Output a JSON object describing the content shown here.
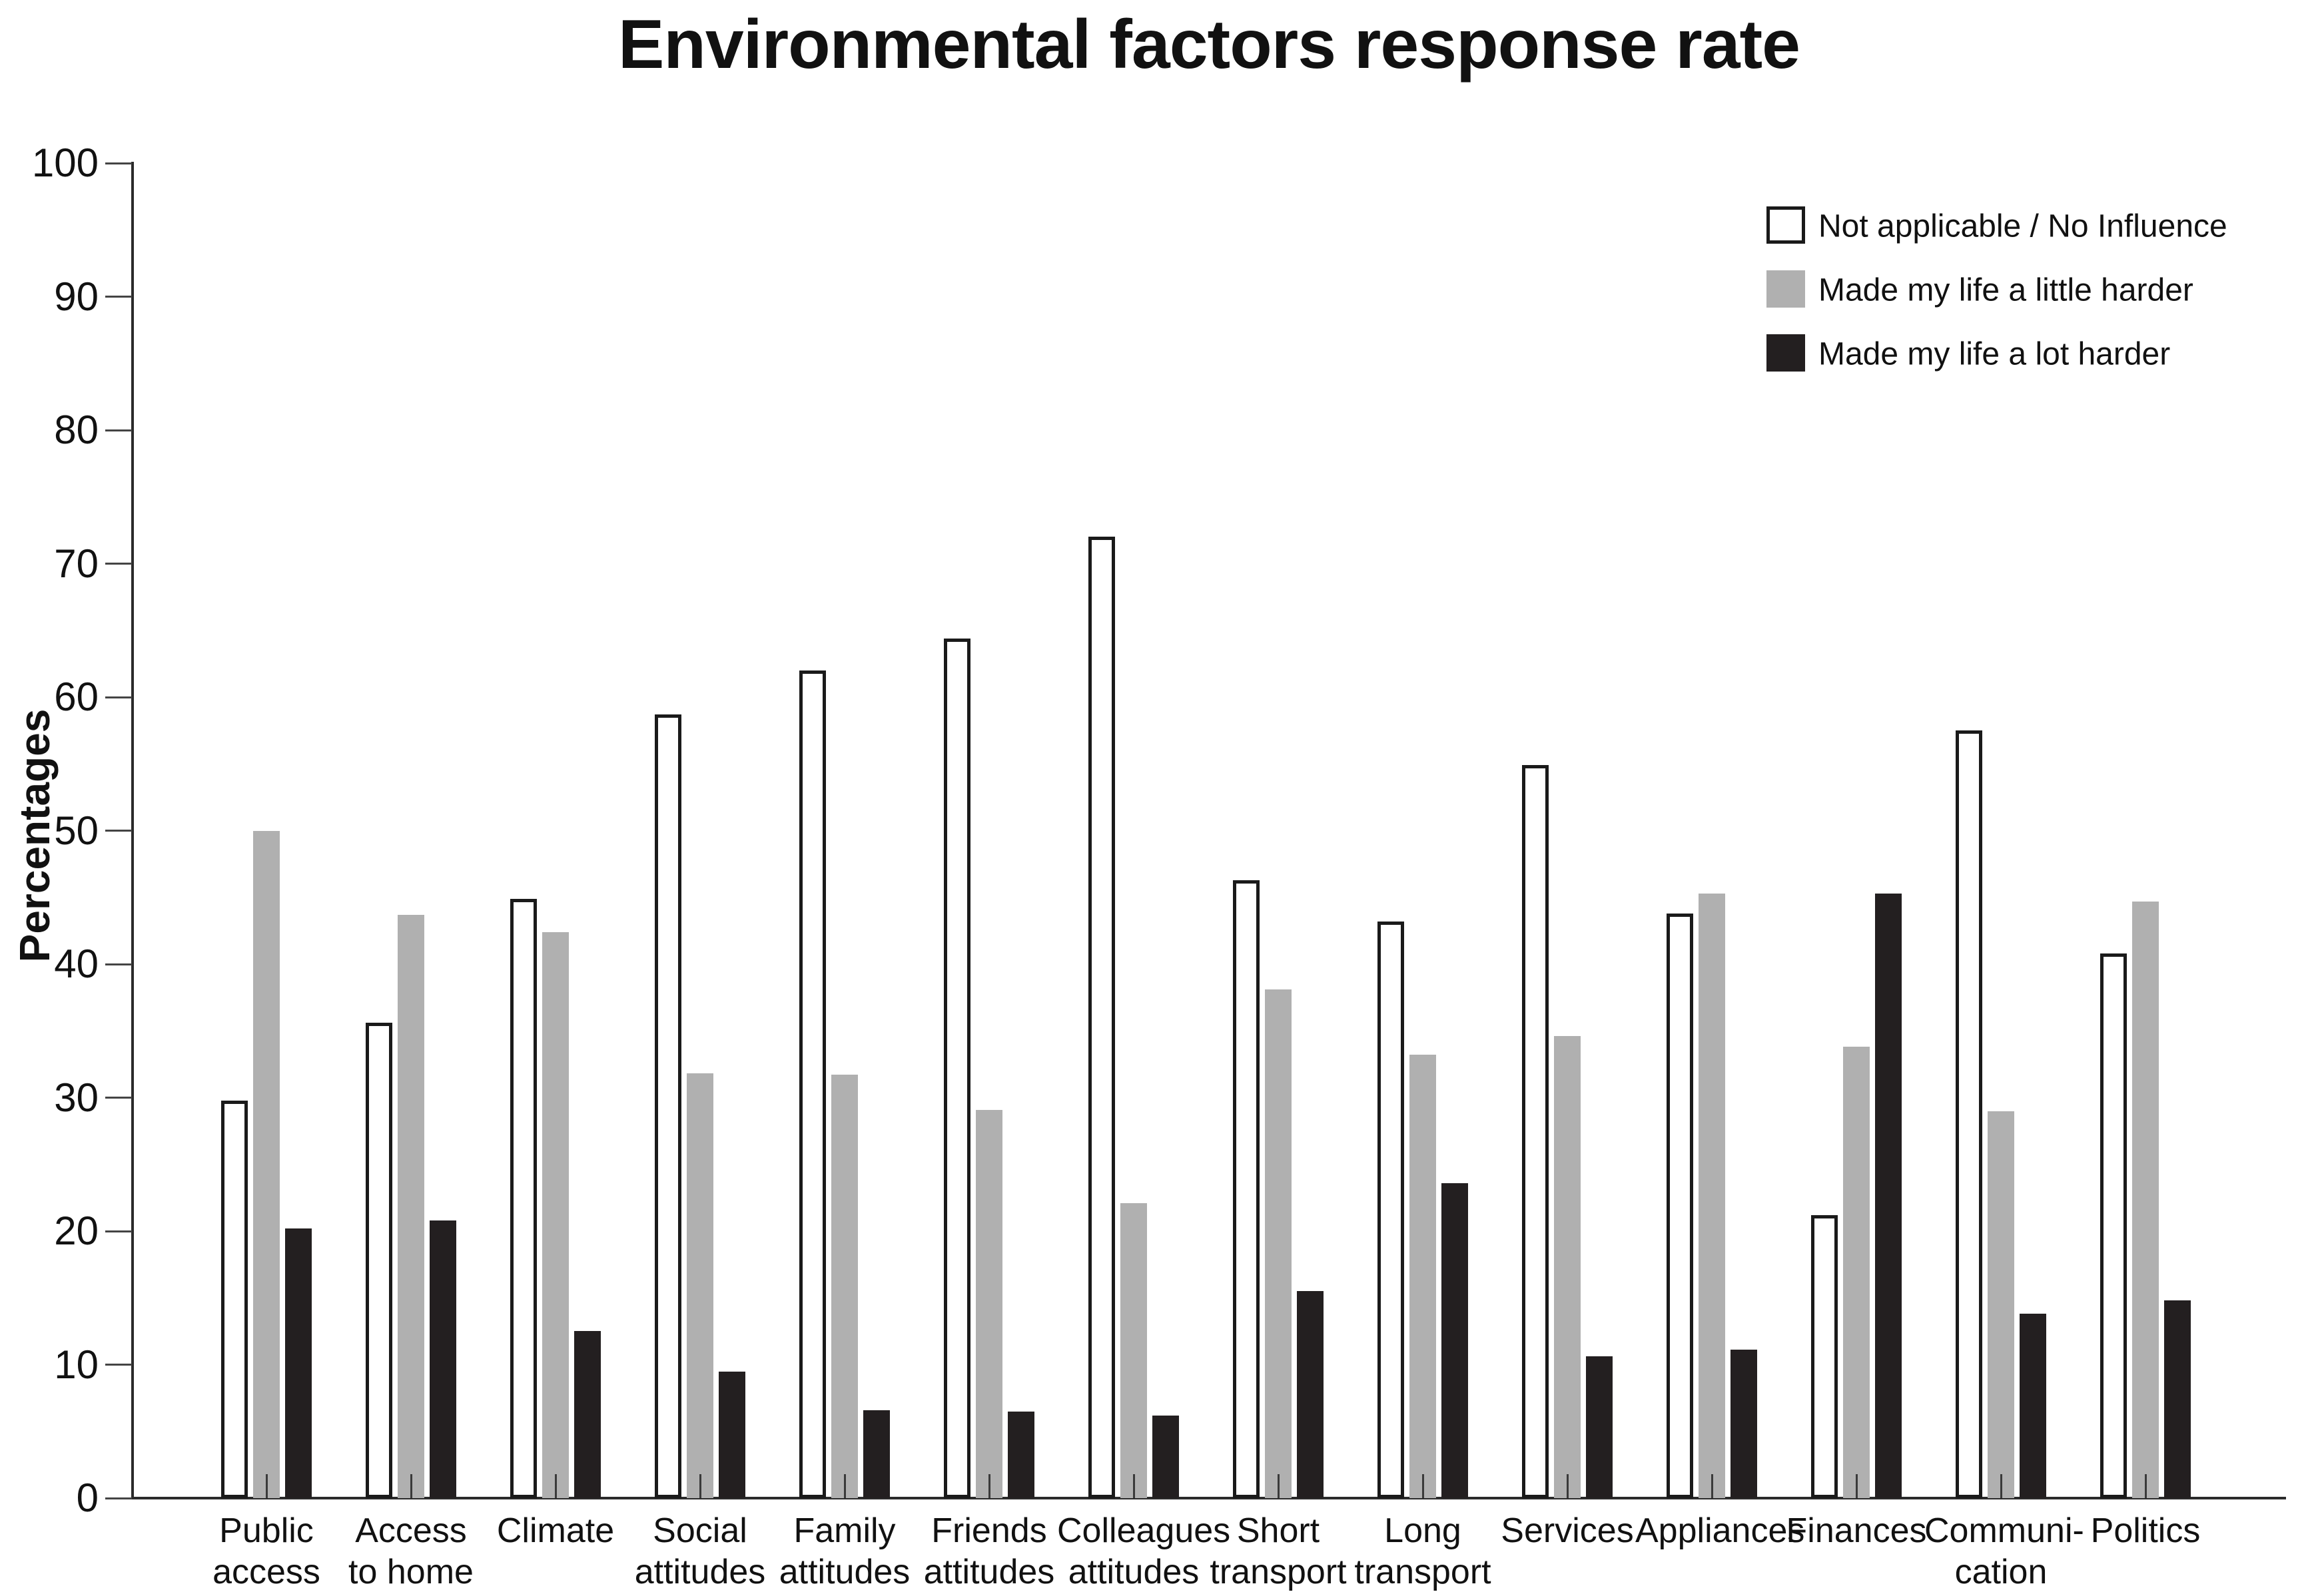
{
  "title": "Environmental factors response rate",
  "y_axis": {
    "label": "Percentages",
    "ticks": [
      0,
      10,
      20,
      30,
      40,
      50,
      60,
      70,
      80,
      90,
      100
    ],
    "min": 0,
    "max": 100
  },
  "legend": {
    "items": [
      {
        "label": "Not applicable / No Influence",
        "color": "#ffffff",
        "border": "#1a1a1a"
      },
      {
        "label": "Made my life a little harder",
        "color": "#b0b0b0",
        "border": "#b0b0b0"
      },
      {
        "label": "Made my life a lot harder",
        "color": "#231f20",
        "border": "#231f20"
      }
    ]
  },
  "chart_data": {
    "type": "bar",
    "title": "Environmental factors response rate",
    "xlabel": "",
    "ylabel": "Percentages",
    "ylim": [
      0,
      100
    ],
    "grid": false,
    "legend_position": "top-right",
    "categories": [
      "Public access",
      "Access to home",
      "Climate",
      "Social attitudes",
      "Family attitudes",
      "Friends attitudes",
      "Colleagues attitudes",
      "Short transport",
      "Long transport",
      "Services",
      "Appliances",
      "Finances",
      "Communi-cation",
      "Politics"
    ],
    "category_labels_two_line": [
      [
        "Public",
        "access"
      ],
      [
        "Access",
        "to home"
      ],
      [
        "Climate",
        ""
      ],
      [
        "Social",
        "attitudes"
      ],
      [
        "Family",
        "attitudes"
      ],
      [
        "Friends",
        "attitudes"
      ],
      [
        "Colleagues",
        "attitudes"
      ],
      [
        "Short",
        "transport"
      ],
      [
        "Long",
        "transport"
      ],
      [
        "Services",
        ""
      ],
      [
        "Appliances",
        ""
      ],
      [
        "Finances",
        ""
      ],
      [
        "Communi-",
        "cation"
      ],
      [
        "Politics",
        ""
      ]
    ],
    "series": [
      {
        "name": "Not applicable / No Influence",
        "color": "#ffffff",
        "values": [
          29.8,
          35.6,
          44.9,
          58.7,
          62.0,
          64.4,
          72.0,
          46.3,
          43.2,
          54.9,
          43.8,
          21.2,
          57.5,
          40.8
        ]
      },
      {
        "name": "Made my life a little harder",
        "color": "#b0b0b0",
        "values": [
          50.0,
          43.7,
          42.4,
          31.8,
          31.7,
          29.1,
          22.1,
          38.1,
          33.2,
          34.6,
          45.3,
          33.8,
          29.0,
          44.7
        ]
      },
      {
        "name": "Made my life a lot harder",
        "color": "#231f20",
        "values": [
          20.2,
          20.8,
          12.5,
          9.5,
          6.6,
          6.5,
          6.2,
          15.5,
          23.6,
          10.6,
          11.1,
          45.3,
          13.8,
          14.8
        ]
      }
    ]
  }
}
